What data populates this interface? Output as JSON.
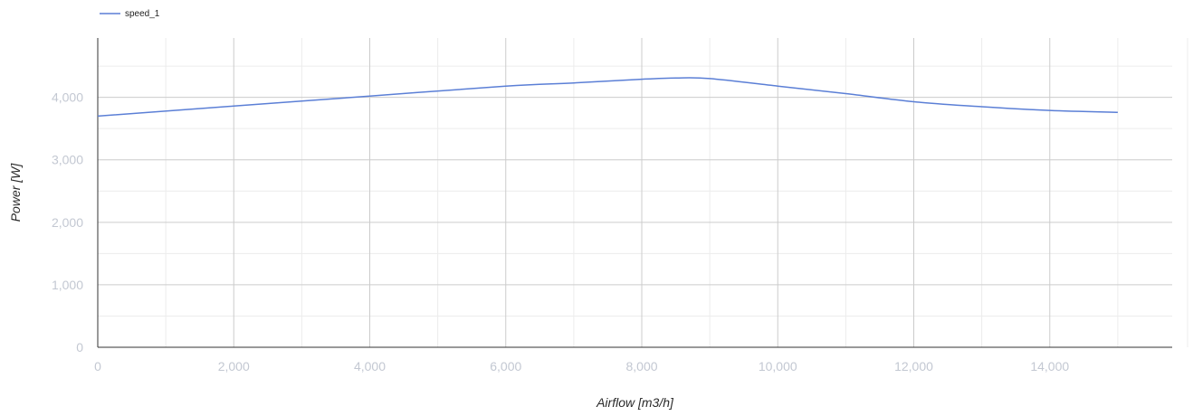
{
  "chart_data": {
    "type": "line",
    "xlabel": "Airflow [m3/h]",
    "ylabel": "Power [W]",
    "xlim": [
      0,
      15800
    ],
    "ylim": [
      0,
      4950
    ],
    "x_ticks": [
      0,
      2000,
      4000,
      6000,
      8000,
      10000,
      12000,
      14000
    ],
    "x_tick_labels": [
      "0",
      "2,000",
      "4,000",
      "6,000",
      "8,000",
      "10,000",
      "12,000",
      "14,000"
    ],
    "y_ticks": [
      0,
      1000,
      2000,
      3000,
      4000
    ],
    "y_tick_labels": [
      "0",
      "1,000",
      "2,000",
      "3,000",
      "4,000"
    ],
    "x_minor_ticks": [
      1000,
      3000,
      5000,
      7000,
      9000,
      11000,
      13000,
      15000
    ],
    "y_minor_ticks": [
      500,
      1500,
      2500,
      3500,
      4500
    ],
    "grid": true,
    "legend_position": "top-left",
    "series": [
      {
        "name": "speed_1",
        "color": "#5b7fd6",
        "x": [
          0,
          2000,
          4000,
          6000,
          7000,
          8000,
          8500,
          9000,
          10000,
          11000,
          12000,
          13000,
          14000,
          15000
        ],
        "values": [
          3700,
          3860,
          4020,
          4180,
          4230,
          4290,
          4310,
          4300,
          4180,
          4060,
          3930,
          3850,
          3790,
          3760
        ]
      }
    ]
  }
}
